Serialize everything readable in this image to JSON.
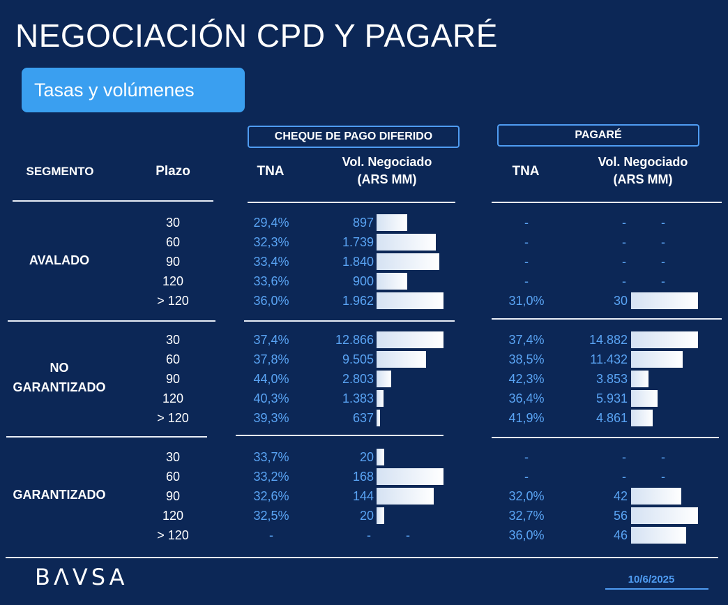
{
  "title": "NEGOCIACIÓN CPD Y PAGARÉ",
  "subtitle": "Tasas y volúmenes",
  "groups": {
    "cpd": "CHEQUE DE PAGO DIFERIDO",
    "pagare": "PAGARÉ"
  },
  "headers": {
    "segmento": "SEGMENTO",
    "plazo": "Plazo",
    "tna_cpd": "TNA",
    "vol_cpd_line1": "Vol. Negociado",
    "vol_cpd_line2": "(ARS MM)",
    "tna_pag": "TNA",
    "vol_pag_line1": "Vol. Negociado",
    "vol_pag_line2": "(ARS MM)"
  },
  "footer": {
    "logo": "BΛVSA",
    "date": "10/6/2025"
  },
  "chart_data": {
    "type": "table",
    "segments": [
      {
        "name_lines": [
          "AVALADO"
        ],
        "rows": [
          {
            "plazo": "30",
            "cpd_tna": "29,4%",
            "cpd_vol_label": "897",
            "cpd_vol": 897,
            "pag_tna": "-",
            "pag_vol_label": "-",
            "pag_vol": null
          },
          {
            "plazo": "60",
            "cpd_tna": "32,3%",
            "cpd_vol_label": "1.739",
            "cpd_vol": 1739,
            "pag_tna": "-",
            "pag_vol_label": "-",
            "pag_vol": null
          },
          {
            "plazo": "90",
            "cpd_tna": "33,4%",
            "cpd_vol_label": "1.840",
            "cpd_vol": 1840,
            "pag_tna": "-",
            "pag_vol_label": "-",
            "pag_vol": null
          },
          {
            "plazo": "120",
            "cpd_tna": "33,6%",
            "cpd_vol_label": "900",
            "cpd_vol": 900,
            "pag_tna": "-",
            "pag_vol_label": "-",
            "pag_vol": null
          },
          {
            "plazo": "> 120",
            "cpd_tna": "36,0%",
            "cpd_vol_label": "1.962",
            "cpd_vol": 1962,
            "pag_tna": "31,0%",
            "pag_vol_label": "30",
            "pag_vol": 30
          }
        ]
      },
      {
        "name_lines": [
          "NO",
          "GARANTIZADO"
        ],
        "rows": [
          {
            "plazo": "30",
            "cpd_tna": "37,4%",
            "cpd_vol_label": "12.866",
            "cpd_vol": 12866,
            "pag_tna": "37,4%",
            "pag_vol_label": "14.882",
            "pag_vol": 14882
          },
          {
            "plazo": "60",
            "cpd_tna": "37,8%",
            "cpd_vol_label": "9.505",
            "cpd_vol": 9505,
            "pag_tna": "38,5%",
            "pag_vol_label": "11.432",
            "pag_vol": 11432
          },
          {
            "plazo": "90",
            "cpd_tna": "44,0%",
            "cpd_vol_label": "2.803",
            "cpd_vol": 2803,
            "pag_tna": "42,3%",
            "pag_vol_label": "3.853",
            "pag_vol": 3853
          },
          {
            "plazo": "120",
            "cpd_tna": "40,3%",
            "cpd_vol_label": "1.383",
            "cpd_vol": 1383,
            "pag_tna": "36,4%",
            "pag_vol_label": "5.931",
            "pag_vol": 5931
          },
          {
            "plazo": "> 120",
            "cpd_tna": "39,3%",
            "cpd_vol_label": "637",
            "cpd_vol": 637,
            "pag_tna": "41,9%",
            "pag_vol_label": "4.861",
            "pag_vol": 4861
          }
        ]
      },
      {
        "name_lines": [
          "GARANTIZADO"
        ],
        "rows": [
          {
            "plazo": "30",
            "cpd_tna": "33,7%",
            "cpd_vol_label": "20",
            "cpd_vol": 20,
            "pag_tna": "-",
            "pag_vol_label": "-",
            "pag_vol": null
          },
          {
            "plazo": "60",
            "cpd_tna": "33,2%",
            "cpd_vol_label": "168",
            "cpd_vol": 168,
            "pag_tna": "-",
            "pag_vol_label": "-",
            "pag_vol": null
          },
          {
            "plazo": "90",
            "cpd_tna": "32,6%",
            "cpd_vol_label": "144",
            "cpd_vol": 144,
            "pag_tna": "32,0%",
            "pag_vol_label": "42",
            "pag_vol": 42
          },
          {
            "plazo": "120",
            "cpd_tna": "32,5%",
            "cpd_vol_label": "20",
            "cpd_vol": 20,
            "pag_tna": "32,7%",
            "pag_vol_label": "56",
            "pag_vol": 56
          },
          {
            "plazo": "> 120",
            "cpd_tna": "-",
            "cpd_vol_label": "-",
            "cpd_vol": null,
            "pag_tna": "36,0%",
            "pag_vol_label": "46",
            "pag_vol": 46
          }
        ]
      }
    ]
  },
  "colors": {
    "background": "#0c2756",
    "accent": "#3a9ff0",
    "value_text": "#5aa4f4",
    "bar": "#e6eef8"
  }
}
